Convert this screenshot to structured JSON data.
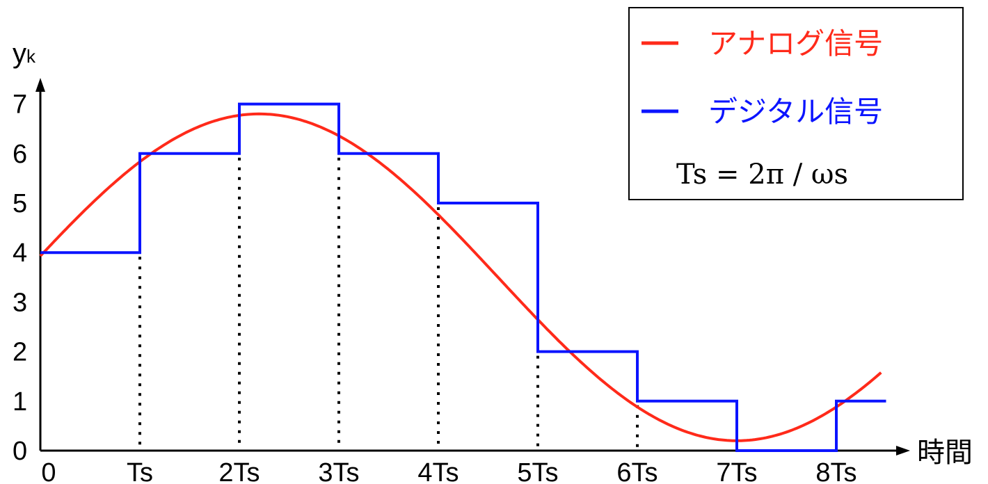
{
  "chart_data": {
    "type": "line",
    "y_axis_label": "y",
    "y_axis_label_sub": "k",
    "x_axis_label": "時間",
    "y_ticks": [
      "0",
      "1",
      "2",
      "3",
      "4",
      "5",
      "6",
      "7"
    ],
    "x_ticks": [
      "0",
      "Ts",
      "2Ts",
      "3Ts",
      "4Ts",
      "5Ts",
      "6Ts",
      "7Ts",
      "8Ts"
    ],
    "x_range": [
      0,
      8.5
    ],
    "y_range": [
      0,
      7.3
    ],
    "series": [
      {
        "name": "アナログ信号",
        "color": "#ff2a1a",
        "kind": "sinusoid",
        "function": {
          "offset": 3.5,
          "amplitude": 3.3,
          "peak_x": 2.2,
          "period": 9.6
        },
        "x_end": 8.45
      },
      {
        "name": "デジタル信号",
        "color": "#0b14ff",
        "kind": "step",
        "values": [
          4,
          6,
          7,
          6,
          5,
          2,
          1,
          0,
          1
        ],
        "x_end": 8.5
      }
    ],
    "sampling_guides": {
      "style": "dotted",
      "color": "#000000",
      "x": [
        1,
        2,
        3,
        4,
        5,
        6,
        7,
        8
      ]
    },
    "legend": {
      "placement": "top-right"
    },
    "grid": false
  },
  "legend": {
    "analog_label": "アナログ信号",
    "digital_label": "デジタル信号",
    "formula": "Ts = 2π / ωs"
  }
}
